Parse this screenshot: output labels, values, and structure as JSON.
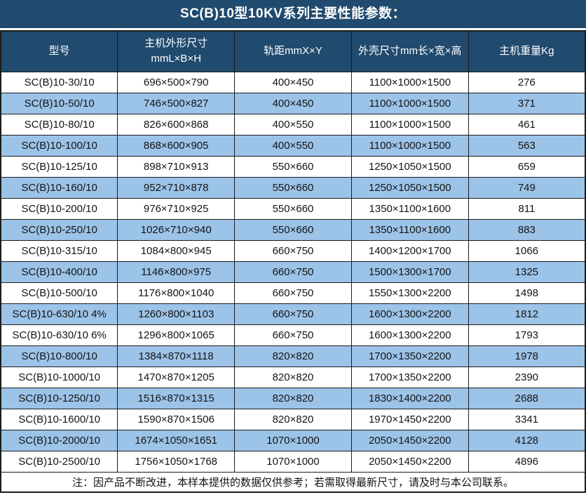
{
  "title": "SC(B)10型10KV系列主要性能参数：",
  "table": {
    "columns": [
      {
        "line1": "型号"
      },
      {
        "line1": "主机外形尺寸",
        "line2": "mmL×B×H"
      },
      {
        "line1": "轨距mmX×Y"
      },
      {
        "line1": "外壳尺寸mm长×宽×高"
      },
      {
        "line1": "主机重量Kg"
      }
    ],
    "rows": [
      [
        "SC(B)10-30/10",
        "696×500×790",
        "400×450",
        "1100×1000×1500",
        "276"
      ],
      [
        "SC(B)10-50/10",
        "746×500×827",
        "400×450",
        "1100×1000×1500",
        "371"
      ],
      [
        "SC(B)10-80/10",
        "826×600×868",
        "400×550",
        "1100×1000×1500",
        "461"
      ],
      [
        "SC(B)10-100/10",
        "868×600×905",
        "400×550",
        "1100×1000×1500",
        "563"
      ],
      [
        "SC(B)10-125/10",
        "898×710×913",
        "550×660",
        "1250×1050×1500",
        "659"
      ],
      [
        "SC(B)10-160/10",
        "952×710×878",
        "550×660",
        "1250×1050×1500",
        "749"
      ],
      [
        "SC(B)10-200/10",
        "976×710×925",
        "550×660",
        "1350×1100×1600",
        "811"
      ],
      [
        "SC(B)10-250/10",
        "1026×710×940",
        "550×660",
        "1350×1100×1600",
        "883"
      ],
      [
        "SC(B)10-315/10",
        "1084×800×945",
        "660×750",
        "1400×1200×1700",
        "1066"
      ],
      [
        "SC(B)10-400/10",
        "1146×800×975",
        "660×750",
        "1500×1300×1700",
        "1325"
      ],
      [
        "SC(B)10-500/10",
        "1176×800×1040",
        "660×750",
        "1550×1300×2200",
        "1498"
      ],
      [
        "SC(B)10-630/10 4%",
        "1260×800×1103",
        "660×750",
        "1600×1300×2200",
        "1812"
      ],
      [
        "SC(B)10-630/10 6%",
        "1296×800×1065",
        "660×750",
        "1600×1300×2200",
        "1793"
      ],
      [
        "SC(B)10-800/10",
        "1384×870×1118",
        "820×820",
        "1700×1350×2200",
        "1978"
      ],
      [
        "SC(B)10-1000/10",
        "1470×870×1205",
        "820×820",
        "1700×1350×2200",
        "2390"
      ],
      [
        "SC(B)10-1250/10",
        "1516×870×1315",
        "820×820",
        "1830×1400×2200",
        "2688"
      ],
      [
        "SC(B)10-1600/10",
        "1590×870×1506",
        "820×820",
        "1970×1450×2200",
        "3341"
      ],
      [
        "SC(B)10-2000/10",
        "1674×1050×1651",
        "1070×1000",
        "2050×1450×2200",
        "4128"
      ],
      [
        "SC(B)10-2500/10",
        "1756×1050×1768",
        "1070×1000",
        "2050×1450×2200",
        "4896"
      ]
    ],
    "note": "注：因产品不断改进，本样本提供的数据仅供参考；若需取得最新尺寸，请及时与本公司联系。"
  },
  "colors": {
    "header_bg": "#204a6e",
    "alt_row_bg": "#9cc3e8",
    "row_bg": "#ffffff",
    "border": "#1c1c1c",
    "header_text": "#ffffff",
    "body_text": "#141414"
  }
}
